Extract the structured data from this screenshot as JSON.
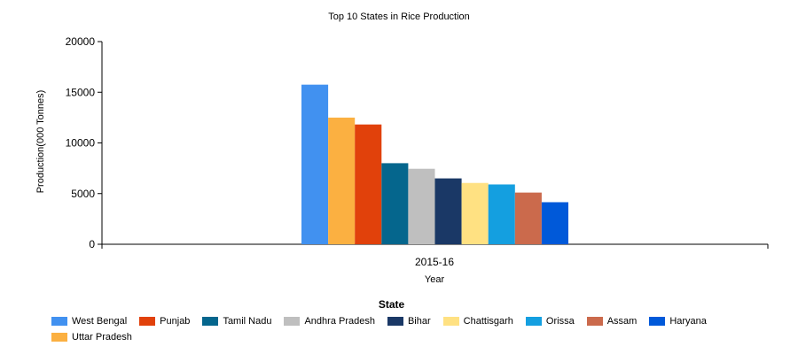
{
  "chart_data": {
    "type": "bar",
    "title": "Top 10 States in Rice Production",
    "xlabel": "Year",
    "ylabel": "Production(000 Tonnes)",
    "categories": [
      "2015-16"
    ],
    "ylim": [
      0,
      20000
    ],
    "yticks": [
      "0",
      "5000",
      "10000",
      "15000",
      "20000"
    ],
    "legend_title": "State",
    "legend_position": "bottom",
    "grid": false,
    "series": [
      {
        "name": "West Bengal",
        "values": [
          15750
        ],
        "color": "#4191F0"
      },
      {
        "name": "Uttar Pradesh",
        "values": [
          12500
        ],
        "color": "#FBB041"
      },
      {
        "name": "Punjab",
        "values": [
          11820
        ],
        "color": "#E1410B"
      },
      {
        "name": "Tamil Nadu",
        "values": [
          8000
        ],
        "color": "#05668D"
      },
      {
        "name": "Andhra Pradesh",
        "values": [
          7450
        ],
        "color": "#BFBFBF"
      },
      {
        "name": "Bihar",
        "values": [
          6500
        ],
        "color": "#1A3866"
      },
      {
        "name": "Chattisgarh",
        "values": [
          6050
        ],
        "color": "#FFE182"
      },
      {
        "name": "Orissa",
        "values": [
          5900
        ],
        "color": "#149FE0"
      },
      {
        "name": "Assam",
        "values": [
          5100
        ],
        "color": "#CB6A4C"
      },
      {
        "name": "Haryana",
        "values": [
          4150
        ],
        "color": "#0059D9"
      }
    ],
    "legend_order": [
      "West Bengal",
      "Punjab",
      "Tamil Nadu",
      "Andhra Pradesh",
      "Bihar",
      "Chattisgarh",
      "Orissa",
      "Assam",
      "Haryana",
      "Uttar Pradesh"
    ]
  }
}
